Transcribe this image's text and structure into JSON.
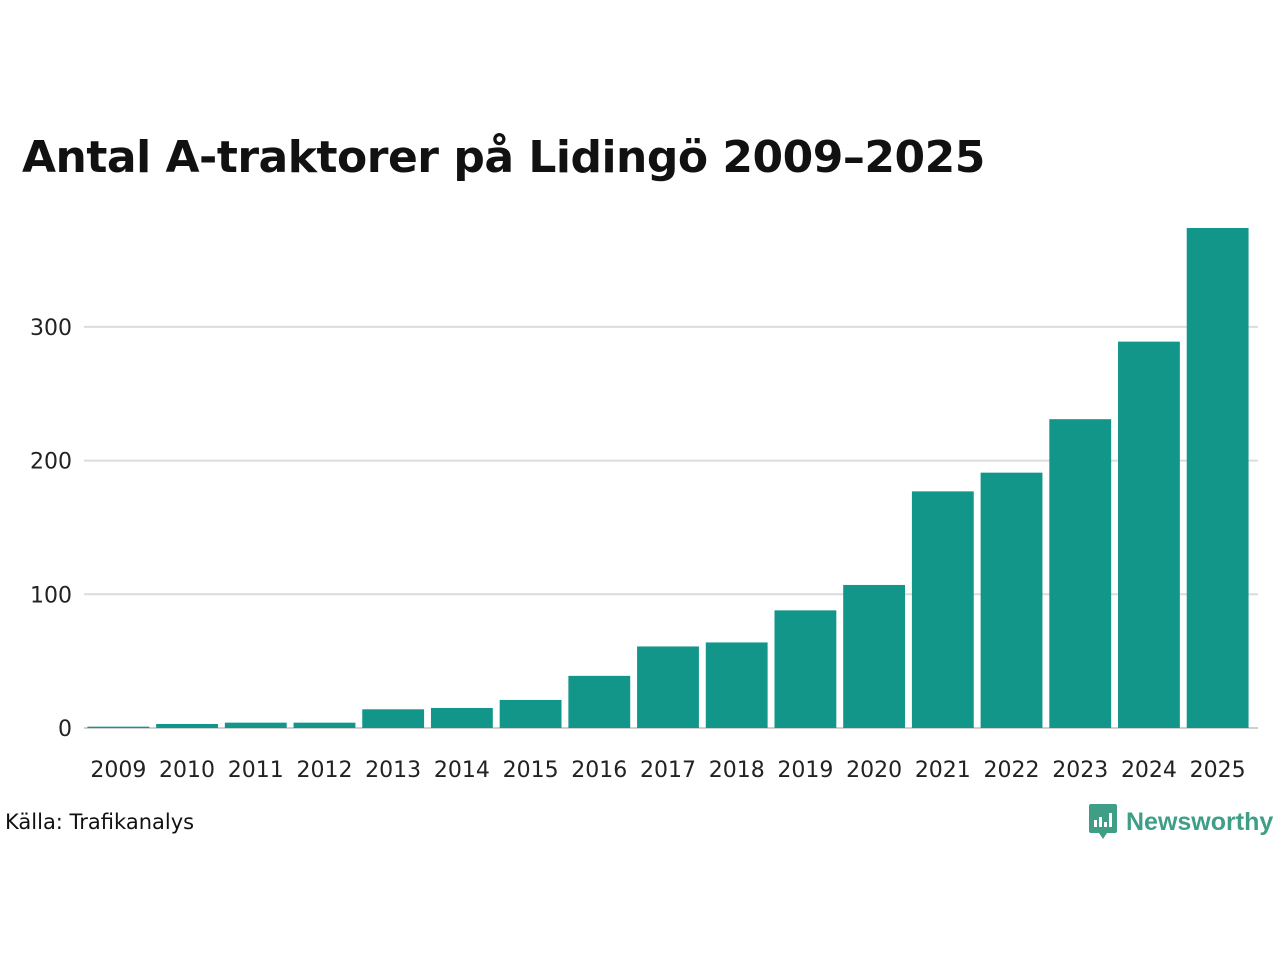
{
  "chart_data": {
    "type": "bar",
    "title": "Antal A-traktorer på Lidingö 2009–2025",
    "xlabel": "",
    "ylabel": "",
    "categories": [
      "2009",
      "2010",
      "2011",
      "2012",
      "2013",
      "2014",
      "2015",
      "2016",
      "2017",
      "2018",
      "2019",
      "2020",
      "2021",
      "2022",
      "2023",
      "2024",
      "2025"
    ],
    "values": [
      1,
      3,
      4,
      4,
      14,
      15,
      21,
      39,
      61,
      64,
      88,
      107,
      177,
      191,
      231,
      289,
      374
    ],
    "ylim": [
      0,
      374
    ],
    "yticks": [
      0,
      100,
      200,
      300
    ],
    "grid": true,
    "bar_color": "#13968a"
  },
  "source": "Källa: Trafikanalys",
  "brand": {
    "name": "Newsworthy",
    "color": "#3f9e86",
    "icon": "newsworthy-logo-icon"
  }
}
